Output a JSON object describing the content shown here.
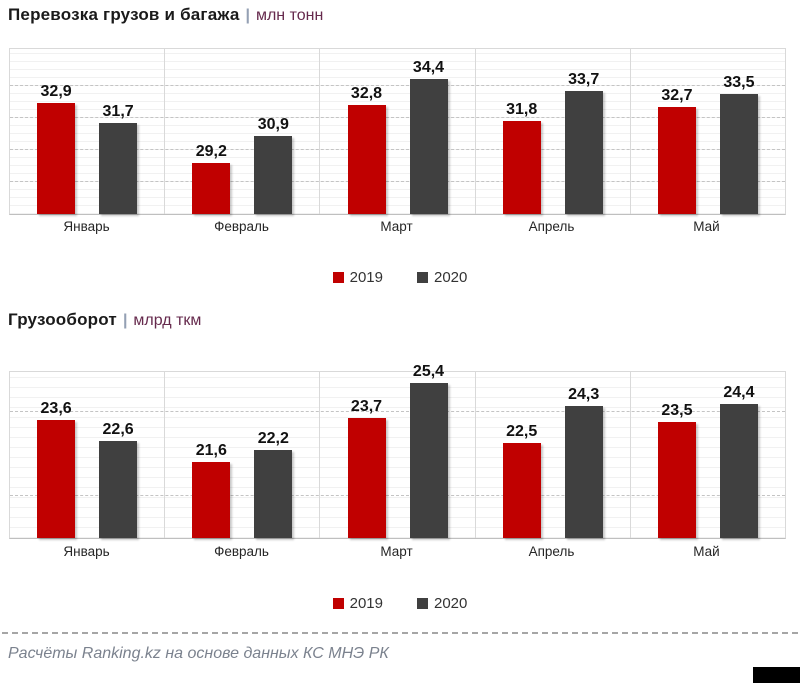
{
  "chart_data": [
    {
      "type": "bar",
      "title": "Перевозка грузов и багажа",
      "title_separator": "|",
      "unit": "млн тонн",
      "categories": [
        "Январь",
        "Февраль",
        "Март",
        "Апрель",
        "Май"
      ],
      "series": [
        {
          "name": "2019",
          "color": "#c00000",
          "values": [
            32.9,
            29.2,
            32.8,
            31.8,
            32.7
          ]
        },
        {
          "name": "2020",
          "color": "#404040",
          "values": [
            31.7,
            30.9,
            34.4,
            33.7,
            33.5
          ]
        }
      ],
      "ylim": [
        26,
        36.3
      ],
      "grid_major": [
        28,
        30,
        32,
        34
      ],
      "grid": "dashed-horizontal",
      "legend_position": "bottom",
      "value_labels": "above-bars, decimal comma"
    },
    {
      "type": "bar",
      "title": "Грузооборот",
      "title_separator": "|",
      "unit": "млрд ткм",
      "categories": [
        "Январь",
        "Февраль",
        "Март",
        "Апрель",
        "Май"
      ],
      "series": [
        {
          "name": "2019",
          "color": "#c00000",
          "values": [
            23.6,
            21.6,
            23.7,
            22.5,
            23.5
          ]
        },
        {
          "name": "2020",
          "color": "#404040",
          "values": [
            22.6,
            22.2,
            25.4,
            24.3,
            24.4
          ]
        }
      ],
      "ylim": [
        18,
        25.9
      ],
      "grid_major": [
        20,
        24
      ],
      "grid": "dashed-horizontal",
      "legend_position": "bottom",
      "value_labels": "above-bars, decimal comma"
    }
  ],
  "footer": {
    "text": "Расчёты Ranking.kz на основе данных КС МНЭ РК"
  },
  "colors": {
    "bar_2019": "#c00000",
    "bar_2020": "#404040",
    "title_text": "#1a1a1a",
    "unit_text": "#662a4d",
    "title_separator": "#94a0b4",
    "grid_dashed": "#c4c4c4",
    "grid_minor": "#f1f1f1",
    "plot_border": "#d9d9d9",
    "footer_text": "#7b828e",
    "corner_mark": "#000000"
  }
}
